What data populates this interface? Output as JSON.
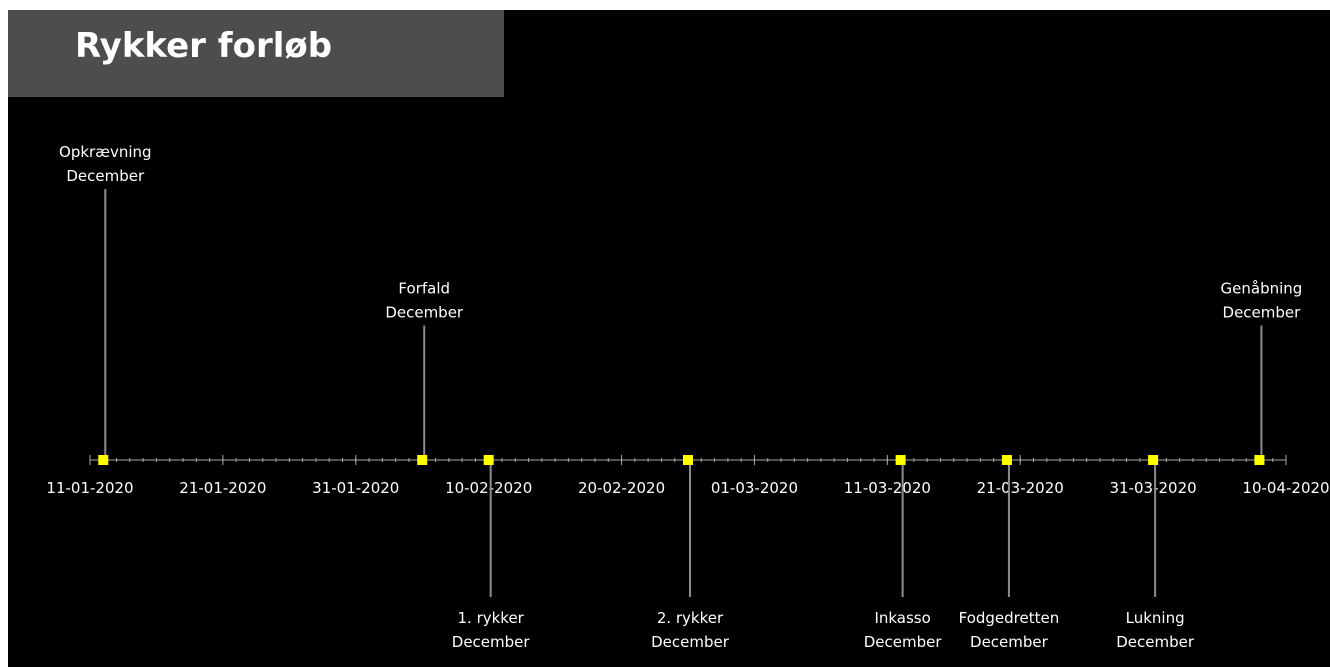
{
  "chart_data": {
    "type": "timeline",
    "title": "Rykker forløb",
    "x_axis": {
      "type": "date",
      "range": [
        "2020-01-11",
        "2020-04-10"
      ],
      "ticks": [
        {
          "date": "2020-01-11",
          "label": "11-01-2020"
        },
        {
          "date": "2020-01-21",
          "label": "21-01-2020"
        },
        {
          "date": "2020-01-31",
          "label": "31-01-2020"
        },
        {
          "date": "2020-02-10",
          "label": "10-02-2020"
        },
        {
          "date": "2020-02-20",
          "label": "20-02-2020"
        },
        {
          "date": "2020-03-01",
          "label": "01-03-2020"
        },
        {
          "date": "2020-03-11",
          "label": "11-03-2020"
        },
        {
          "date": "2020-03-21",
          "label": "21-03-2020"
        },
        {
          "date": "2020-03-31",
          "label": "31-03-2020"
        },
        {
          "date": "2020-04-10",
          "label": "10-04-2020"
        }
      ]
    },
    "grid": false,
    "legend": "none",
    "colors": {
      "background": "#000000",
      "marker": "#ffff00",
      "stem": "#8c8c8c",
      "axis": "#a6a6a6",
      "text": "#ffffff",
      "title_box": "#4d4d4d"
    },
    "events": [
      {
        "date": "2020-01-12",
        "height": 1.0,
        "line1": "Opkrævning",
        "line2": "December"
      },
      {
        "date": "2020-02-05",
        "height": 0.5,
        "line1": "Forfald",
        "line2": "December"
      },
      {
        "date": "2020-02-10",
        "height": -0.5,
        "line1": "1. rykker",
        "line2": "December"
      },
      {
        "date": "2020-02-25",
        "height": -0.5,
        "line1": "2. rykker",
        "line2": "December"
      },
      {
        "date": "2020-03-12",
        "height": -0.5,
        "line1": "Inkasso",
        "line2": "December"
      },
      {
        "date": "2020-03-20",
        "height": -0.5,
        "line1": "Fodgedretten",
        "line2": "December"
      },
      {
        "date": "2020-03-31",
        "height": -0.5,
        "line1": "Lukning",
        "line2": "December"
      },
      {
        "date": "2020-04-08",
        "height": 0.5,
        "line1": "Genåbning",
        "line2": "December"
      }
    ]
  }
}
